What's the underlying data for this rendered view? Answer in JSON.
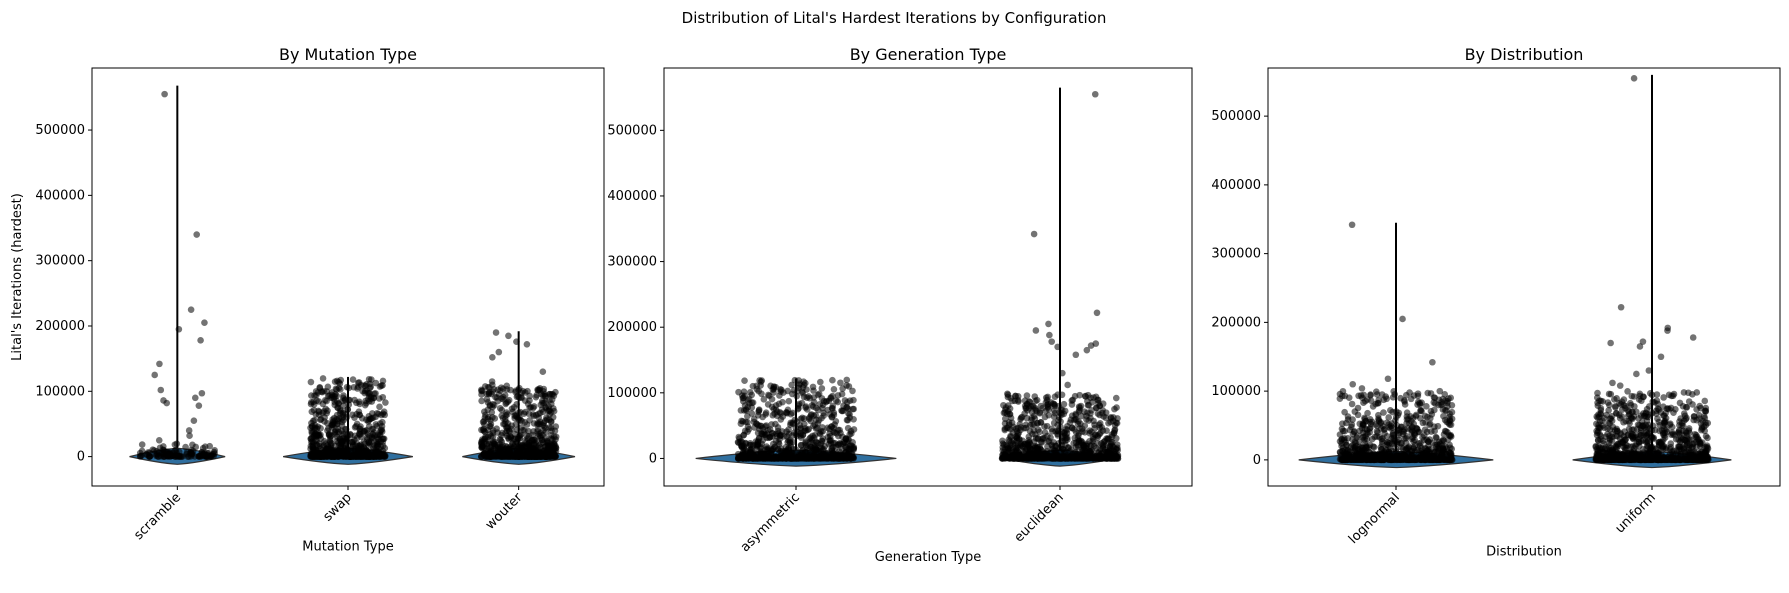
{
  "figure": {
    "suptitle": "Distribution of Lital's Hardest Iterations by Configuration"
  },
  "colors": {
    "violin": "#2f6f9f",
    "violin_edge": "#333333",
    "points": "#000000",
    "whisker": "#000000"
  },
  "chart_data": [
    {
      "type": "violin",
      "title": "By Mutation Type",
      "xlabel": "Mutation Type",
      "ylabel": "Lital's Iterations (hardest)",
      "ylim": [
        -45000,
        595000
      ],
      "yticks": [
        0,
        100000,
        200000,
        300000,
        400000,
        500000
      ],
      "categories": [
        "scramble",
        "swap",
        "wouter"
      ],
      "groups": [
        {
          "name": "scramble",
          "whisker_max": 568000,
          "violin_halfwidth": 0.28,
          "outliers": [
            555000,
            340000,
            225000,
            205000,
            195000,
            178000,
            142000,
            125000,
            102000,
            97000,
            90000,
            86000,
            82000,
            78000,
            55000,
            40000,
            32000,
            25000
          ],
          "bulk_max": 20000,
          "bulk_count": 120
        },
        {
          "name": "swap",
          "whisker_max": 122000,
          "violin_halfwidth": 0.38,
          "outliers": [],
          "bulk_max": 120000,
          "bulk_count": 700
        },
        {
          "name": "wouter",
          "whisker_max": 192000,
          "violin_halfwidth": 0.33,
          "outliers": [
            190000,
            185000,
            176000,
            172000,
            160000,
            152000,
            130000,
            115000
          ],
          "bulk_max": 110000,
          "bulk_count": 700
        }
      ]
    },
    {
      "type": "violin",
      "title": "By Generation Type",
      "xlabel": "Generation Type",
      "ylabel": "",
      "ylim": [
        -42000,
        595000
      ],
      "yticks": [
        0,
        100000,
        200000,
        300000,
        400000,
        500000
      ],
      "categories": [
        "asymmetric",
        "euclidean"
      ],
      "groups": [
        {
          "name": "asymmetric",
          "whisker_max": 122000,
          "violin_halfwidth": 0.38,
          "outliers": [],
          "bulk_max": 120000,
          "bulk_count": 900
        },
        {
          "name": "euclidean",
          "whisker_max": 565000,
          "violin_halfwidth": 0.22,
          "outliers": [
            555000,
            342000,
            222000,
            205000,
            195000,
            188000,
            178000,
            175000,
            172000,
            170000,
            165000,
            158000,
            130000,
            112000,
            95000,
            88000,
            80000
          ],
          "bulk_max": 100000,
          "bulk_count": 900
        }
      ]
    },
    {
      "type": "violin",
      "title": "By Distribution",
      "xlabel": "Distribution",
      "ylabel": "",
      "ylim": [
        -38000,
        570000
      ],
      "yticks": [
        0,
        100000,
        200000,
        300000,
        400000,
        500000
      ],
      "categories": [
        "lognormal",
        "uniform"
      ],
      "groups": [
        {
          "name": "lognormal",
          "whisker_max": 345000,
          "violin_halfwidth": 0.38,
          "outliers": [
            342000,
            205000,
            142000,
            118000,
            110000,
            104000
          ],
          "bulk_max": 100000,
          "bulk_count": 800
        },
        {
          "name": "uniform",
          "whisker_max": 560000,
          "violin_halfwidth": 0.31,
          "outliers": [
            555000,
            222000,
            192000,
            188000,
            178000,
            172000,
            170000,
            165000,
            150000,
            130000,
            125000,
            112000,
            108000
          ],
          "bulk_max": 100000,
          "bulk_count": 900
        }
      ]
    }
  ]
}
